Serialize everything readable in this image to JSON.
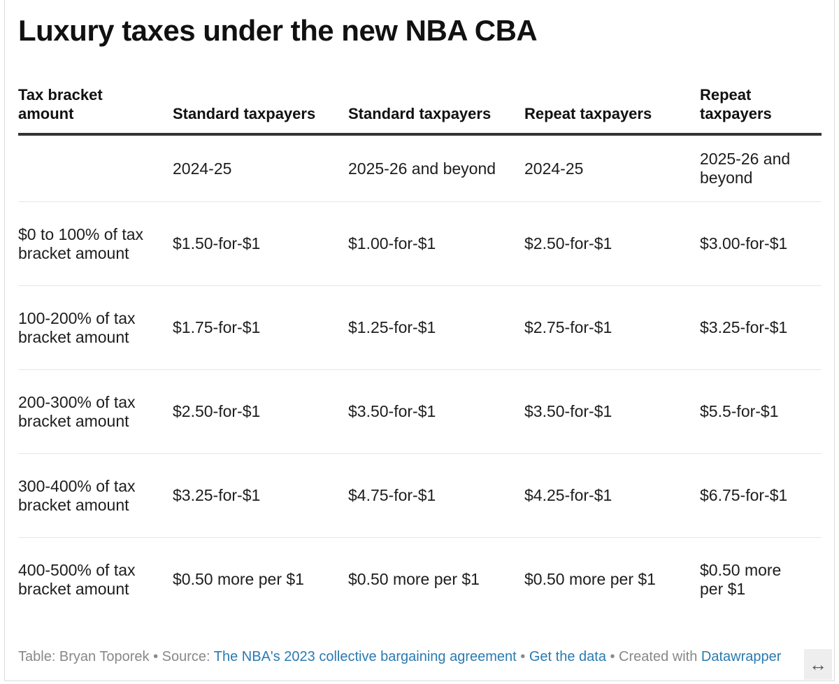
{
  "title": "Luxury taxes under the new NBA CBA",
  "chart_data": {
    "type": "table",
    "columns": [
      "Tax bracket amount",
      "Standard taxpayers",
      "Standard taxpayers",
      "Repeat taxpayers",
      "Repeat taxpayers"
    ],
    "subheader": [
      "",
      "2024-25",
      "2025-26 and beyond",
      "2024-25",
      "2025-26 and beyond"
    ],
    "rows": [
      [
        "$0 to 100% of tax bracket amount",
        "$1.50-for-$1",
        "$1.00-for-$1",
        "$2.50-for-$1",
        "$3.00-for-$1"
      ],
      [
        "100-200% of tax bracket amount",
        "$1.75-for-$1",
        "$1.25-for-$1",
        "$2.75-for-$1",
        "$3.25-for-$1"
      ],
      [
        "200-300% of tax bracket amount",
        "$2.50-for-$1",
        "$3.50-for-$1",
        "$3.50-for-$1",
        "$5.5-for-$1"
      ],
      [
        "300-400% of tax bracket amount",
        "$3.25-for-$1",
        "$4.75-for-$1",
        "$4.25-for-$1",
        "$6.75-for-$1"
      ],
      [
        "400-500% of tax bracket amount",
        "$0.50 more per $1",
        "$0.50 more per $1",
        "$0.50 more per $1",
        "$0.50 more per $1"
      ]
    ]
  },
  "footer": {
    "prefix": "Table: Bryan Toporek • Source: ",
    "source_link": "The NBA's 2023 collective bargaining agreement",
    "sep1": " • ",
    "data_link": "Get the data",
    "sep2": " • Created with ",
    "tool_link": "Datawrapper"
  },
  "resize_icon": "↔",
  "colors": {
    "link": "#2a7ab0",
    "rule": "#333333",
    "muted": "#888888"
  }
}
